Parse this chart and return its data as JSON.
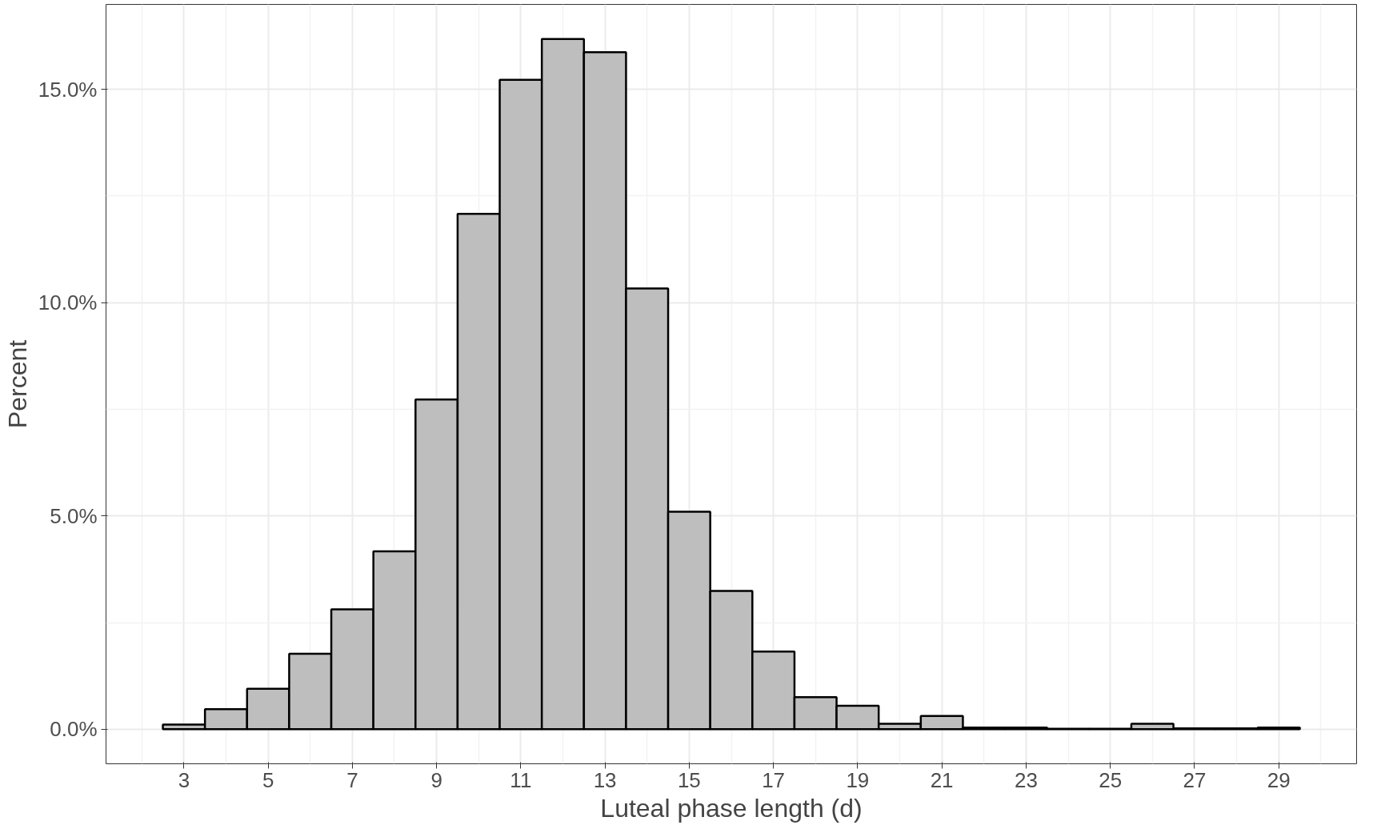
{
  "chart_data": {
    "type": "histogram",
    "xlabel": "Luteal phase length (d)",
    "ylabel": "Percent",
    "bins": [
      2.5,
      3.5,
      4.5,
      5.5,
      6.5,
      7.5,
      8.5,
      9.5,
      10.5,
      11.5,
      12.5,
      13.5,
      14.5,
      15.5,
      16.5,
      17.5,
      18.5,
      19.5,
      20.5,
      21.5,
      22.5,
      23.5,
      24.5,
      25.5,
      26.5,
      27.5,
      28.5,
      29.5
    ],
    "values": [
      0.11,
      0.47,
      0.95,
      1.77,
      2.81,
      4.17,
      7.73,
      12.08,
      15.22,
      16.18,
      15.87,
      10.33,
      5.1,
      3.24,
      1.82,
      0.75,
      0.55,
      0.13,
      0.31,
      0.04,
      0.04,
      0.01,
      0.01,
      0.13,
      0.02,
      0.02,
      0.04
    ],
    "color": "#bebebe",
    "xlim": [
      1.15,
      30.85
    ],
    "xticks": [
      3,
      5,
      7,
      9,
      11,
      13,
      15,
      17,
      19,
      21,
      23,
      25,
      27,
      29
    ],
    "ylim": [
      -0.81,
      16.99
    ],
    "yticks": [
      {
        "value": 0,
        "label": "0.0%"
      },
      {
        "value": 5,
        "label": "5.0%"
      },
      {
        "value": 10,
        "label": "10.0%"
      },
      {
        "value": 15,
        "label": "15.0%"
      }
    ],
    "grid": true
  }
}
